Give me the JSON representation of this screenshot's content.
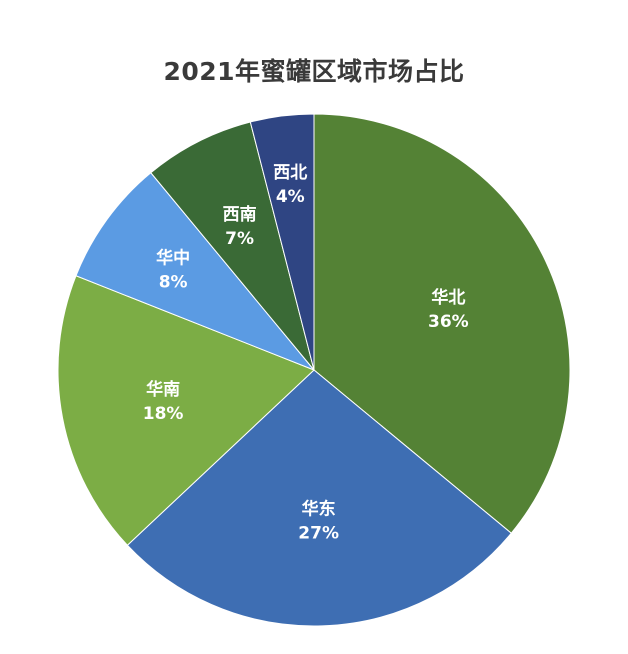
{
  "chart_data": {
    "type": "pie",
    "title": "2021年蜜罐区域市场占比",
    "categories": [
      "华北",
      "华东",
      "华南",
      "华中",
      "西南",
      "西北"
    ],
    "values": [
      36,
      27,
      18,
      8,
      7,
      4
    ],
    "labels": [
      "36%",
      "27%",
      "18%",
      "8%",
      "7%",
      "4%"
    ],
    "colors": [
      "#548235",
      "#3e6eb3",
      "#7cad45",
      "#5b9be3",
      "#3a6a36",
      "#2f4583"
    ],
    "start_angle_deg": 0,
    "direction": "clockwise",
    "legend": "none"
  }
}
